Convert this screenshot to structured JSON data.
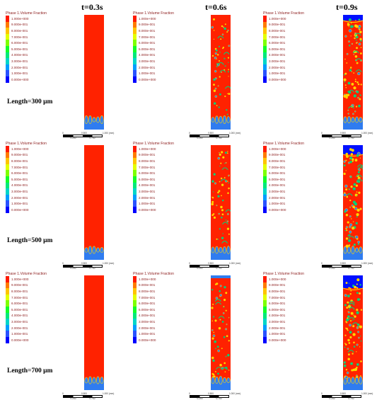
{
  "time_labels": [
    "t=0.3s",
    "t=0.6s",
    "t=0.9s"
  ],
  "row_labels": [
    "Length=300 μm",
    "Length=500 μm",
    "Length=700 μm"
  ],
  "legend": {
    "title": "Phase 1.Volume Fraction",
    "values": [
      "1.000e+000",
      "9.000e-001",
      "8.000e-001",
      "7.000e-001",
      "6.000e-001",
      "5.000e-001",
      "4.000e-001",
      "3.000e-001",
      "2.000e-001",
      "1.000e-001",
      "0.000e+000"
    ],
    "colors": [
      "#ff1a00",
      "#ff7a00",
      "#ffc400",
      "#e3ff00",
      "#7fff00",
      "#12ff2a",
      "#00e87a",
      "#00d6c8",
      "#009dff",
      "#2a52ff",
      "#0000ff"
    ]
  },
  "scale_bar": {
    "ticks": [
      "0",
      "0.500",
      "1.000 (mm)"
    ],
    "sub_ticks": [
      "0.250",
      "0.750"
    ]
  },
  "colors": {
    "liquid": "#ff2200",
    "vapor": "#2f7cf0",
    "interface_yellow": "#ffd600",
    "interface_green": "#00d27a",
    "deep_blue": "#0010ff"
  }
}
